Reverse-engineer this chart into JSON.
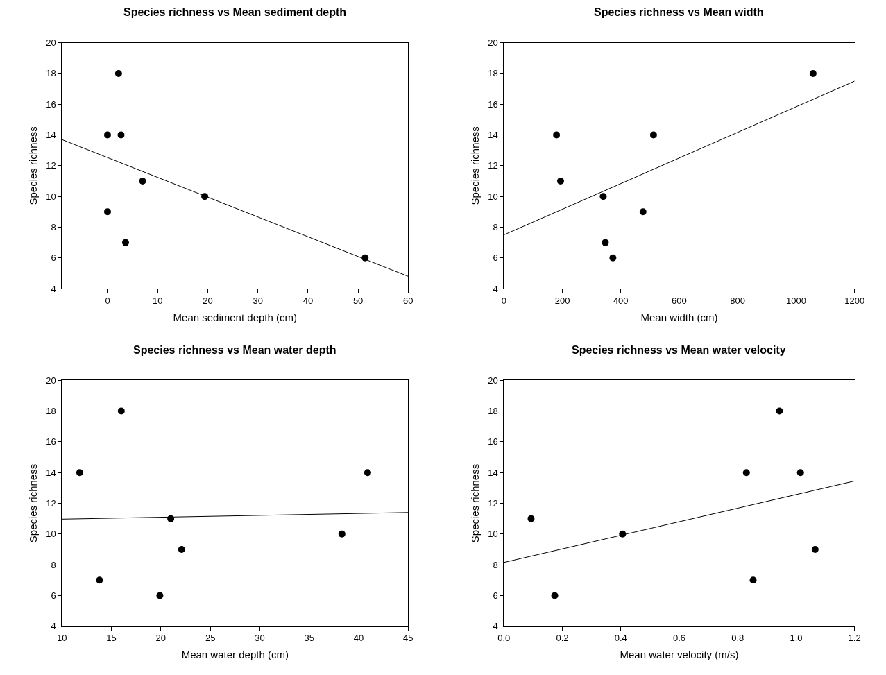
{
  "chart_data": [
    {
      "type": "scatter",
      "title": "Species richness vs Mean sediment depth",
      "xlabel": "Mean sediment depth (cm)",
      "ylabel": "Species richness",
      "xlim": [
        -9.1,
        60
      ],
      "xticks": [
        0,
        10,
        20,
        30,
        40,
        50,
        60
      ],
      "ylim": [
        4,
        20
      ],
      "yticks": [
        4,
        6,
        8,
        10,
        12,
        14,
        16,
        18,
        20
      ],
      "grid": false,
      "marker": "circle",
      "series": [
        {
          "color": "#000000",
          "x": [
            0,
            0,
            2.2,
            2.7,
            3.6,
            7.0,
            19.4,
            51.4
          ],
          "values": [
            14,
            9,
            18,
            14,
            7,
            11,
            10,
            6
          ]
        },
        {
          "type": "line",
          "color": "#000000",
          "marker": "none",
          "line_style": "solid",
          "x": [
            -9.1,
            60
          ],
          "values": [
            13.7,
            4.8
          ]
        }
      ]
    },
    {
      "type": "scatter",
      "title": "Species richness vs Mean width",
      "xlabel": "Mean width (cm)",
      "ylabel": "Species richness",
      "xlim": [
        0,
        1200
      ],
      "xticks": [
        0,
        200,
        400,
        600,
        800,
        1000,
        1200
      ],
      "ylim": [
        4,
        20
      ],
      "yticks": [
        4,
        6,
        8,
        10,
        12,
        14,
        16,
        18,
        20
      ],
      "grid": false,
      "marker": "circle",
      "series": [
        {
          "color": "#000000",
          "x": [
            180,
            194,
            340,
            347,
            373,
            476,
            512,
            1058
          ],
          "values": [
            14,
            11,
            10,
            7,
            6,
            9,
            14,
            18
          ]
        },
        {
          "type": "line",
          "color": "#000000",
          "marker": "none",
          "line_style": "solid",
          "x": [
            0,
            1200
          ],
          "values": [
            7.5,
            17.5
          ]
        }
      ]
    },
    {
      "type": "scatter",
      "title": "Species richness vs Mean water depth",
      "xlabel": "Mean water depth (cm)",
      "ylabel": "Species richness",
      "xlim": [
        10,
        45
      ],
      "xticks": [
        10,
        15,
        20,
        25,
        30,
        35,
        40,
        45
      ],
      "ylim": [
        4,
        20
      ],
      "yticks": [
        4,
        6,
        8,
        10,
        12,
        14,
        16,
        18,
        20
      ],
      "grid": false,
      "marker": "circle",
      "series": [
        {
          "color": "#000000",
          "x": [
            11.8,
            13.8,
            16.0,
            19.9,
            21.0,
            22.1,
            38.3,
            40.9
          ],
          "values": [
            14,
            7,
            18,
            6,
            11,
            9,
            10,
            14
          ]
        },
        {
          "type": "line",
          "color": "#000000",
          "marker": "none",
          "line_style": "solid",
          "x": [
            10,
            45
          ],
          "values": [
            10.97,
            11.4
          ]
        }
      ]
    },
    {
      "type": "scatter",
      "title": "Species richness vs Mean water velocity",
      "xlabel": "Mean water velocity (m/s)",
      "ylabel": "Species richness",
      "xlim": [
        0,
        1.2
      ],
      "xticks": [
        {
          "value": 0,
          "label": "0.0"
        },
        {
          "value": 0.2,
          "label": "0.2"
        },
        {
          "value": 0.4,
          "label": "0.4"
        },
        {
          "value": 0.6,
          "label": "0.6"
        },
        {
          "value": 0.8,
          "label": "0.8"
        },
        {
          "value": 1.0,
          "label": "1.0"
        },
        {
          "value": 1.2,
          "label": "1.2"
        }
      ],
      "ylim": [
        4,
        20
      ],
      "yticks": [
        4,
        6,
        8,
        10,
        12,
        14,
        16,
        18,
        20
      ],
      "grid": false,
      "marker": "circle",
      "series": [
        {
          "color": "#000000",
          "x": [
            0.093,
            0.174,
            0.406,
            0.83,
            0.853,
            0.943,
            1.015,
            1.065
          ],
          "values": [
            11,
            6,
            10,
            14,
            7,
            18,
            14,
            9
          ]
        },
        {
          "type": "line",
          "color": "#000000",
          "marker": "none",
          "line_style": "solid",
          "x": [
            0,
            1.2
          ],
          "values": [
            8.15,
            13.45
          ]
        }
      ]
    }
  ]
}
